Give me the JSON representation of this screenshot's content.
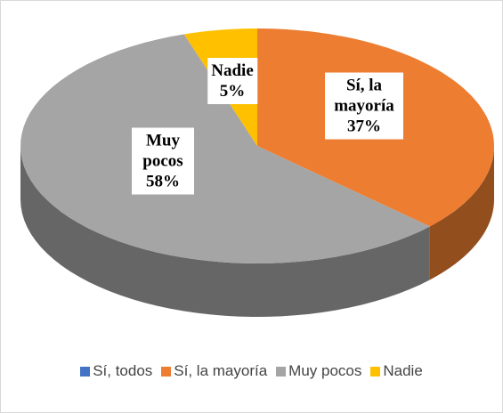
{
  "chart_data": {
    "type": "pie3d",
    "categories": [
      "Sí, todos",
      "Sí, la mayoría",
      "Muy pocos",
      "Nadie"
    ],
    "values": [
      0,
      37,
      58,
      5
    ],
    "value_labels": [
      null,
      "37%",
      "58%",
      "5%"
    ],
    "colors": [
      "#4472C4",
      "#ED7D31",
      "#A5A5A5",
      "#FFC000"
    ],
    "legend": "bottom"
  }
}
